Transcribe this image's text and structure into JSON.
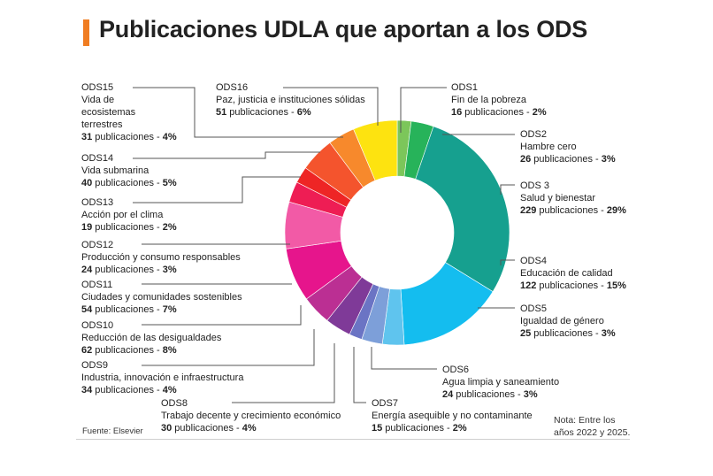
{
  "header": {
    "title": "Publicaciones UDLA que aportan a los ODS",
    "accent_color": "#f07d22"
  },
  "footer": {
    "source": "Fuente: Elsevier",
    "note_line1": "Nota: Entre los",
    "note_line2": "años 2022 y 2025."
  },
  "chart_data": {
    "type": "donut",
    "title": "Publicaciones UDLA que aportan a los ODS",
    "unit": "publicaciones",
    "slices": [
      {
        "code": "ODS1",
        "name": "Fin de la pobreza",
        "count": "16",
        "pct": "2%",
        "value": 16,
        "color": "#7cc65a"
      },
      {
        "code": "ODS2",
        "name": "Hambre cero",
        "count": "26",
        "pct": "3%",
        "value": 26,
        "color": "#27b35a"
      },
      {
        "code": "ODS 3",
        "name": "Salud y bienestar",
        "count": "229",
        "pct": "29%",
        "value": 229,
        "color": "#16a08f"
      },
      {
        "code": "ODS4",
        "name": "Educación de calidad",
        "count": "122",
        "pct": "15%",
        "value": 122,
        "color": "#14bdef"
      },
      {
        "code": "ODS5",
        "name": "Igualdad de género",
        "count": "25",
        "pct": "3%",
        "value": 25,
        "color": "#5fc4ee"
      },
      {
        "code": "ODS6",
        "name": "Agua limpia y saneamiento",
        "count": "24",
        "pct": "3%",
        "value": 24,
        "color": "#7d9fd9"
      },
      {
        "code": "ODS7",
        "name": "Energía asequible y no contaminante",
        "count": "15",
        "pct": "2%",
        "value": 15,
        "color": "#6b74c4"
      },
      {
        "code": "ODS8",
        "name": "Trabajo decente y crecimiento económico",
        "count": "30",
        "pct": "4%",
        "value": 30,
        "color": "#7f3a98"
      },
      {
        "code": "ODS9",
        "name": "Industria, innovación e infraestructura",
        "count": "34",
        "pct": "4%",
        "value": 34,
        "color": "#bb2f93"
      },
      {
        "code": "ODS10",
        "name": "Reducción de las desigualdades",
        "count": "62",
        "pct": "8%",
        "value": 62,
        "color": "#e6158c"
      },
      {
        "code": "ODS11",
        "name": "Ciudades y comunidades sostenibles",
        "count": "54",
        "pct": "7%",
        "value": 54,
        "color": "#f25aa6"
      },
      {
        "code": "ODS12",
        "name": "Producción y consumo responsables",
        "count": "24",
        "pct": "3%",
        "value": 24,
        "color": "#ee1d54"
      },
      {
        "code": "ODS13",
        "name": "Acción por el clima",
        "count": "19",
        "pct": "2%",
        "value": 19,
        "color": "#ee2525"
      },
      {
        "code": "ODS14",
        "name": "Vida submarina",
        "count": "40",
        "pct": "5%",
        "value": 40,
        "color": "#f4542d"
      },
      {
        "code": "ODS15",
        "name": "Vida de ecosistemas terrestres",
        "name_lines": [
          "Vida de",
          "ecosistemas",
          "terrestres"
        ],
        "count": "31",
        "pct": "4%",
        "value": 31,
        "color": "#f7892c"
      },
      {
        "code": "ODS16",
        "name": "Paz, justicia e instituciones sólidas",
        "count": "51",
        "pct": "6%",
        "value": 51,
        "color": "#fde310"
      }
    ]
  }
}
